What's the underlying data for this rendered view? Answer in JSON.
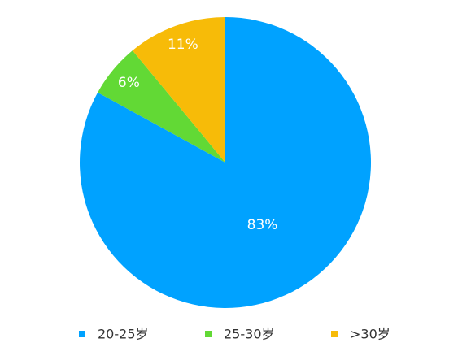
{
  "chart_data": {
    "type": "pie",
    "categories": [
      "20-25岁",
      "25-30岁",
      ">30岁"
    ],
    "values": [
      83,
      6,
      11
    ],
    "value_labels": [
      "83%",
      "6%",
      "11%"
    ],
    "colors": [
      "#00a2ff",
      "#62d935",
      "#f7bb08"
    ]
  }
}
